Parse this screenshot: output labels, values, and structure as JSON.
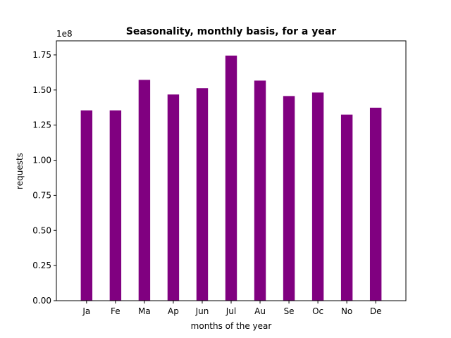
{
  "chart_data": {
    "type": "bar",
    "title": "Seasonality, monthly basis, for a year",
    "xlabel": "months of the year",
    "ylabel": "requests",
    "y_offset_label": "1e8",
    "y_scale": 100000000,
    "categories": [
      "Ja",
      "Fe",
      "Ma",
      "Ap",
      "Jun",
      "Jul",
      "Au",
      "Se",
      "Oc",
      "No",
      "De"
    ],
    "values": [
      135500000,
      135500000,
      157200000,
      146800000,
      151300000,
      174500000,
      156700000,
      145700000,
      148200000,
      132500000,
      137400000
    ],
    "ylim": [
      0,
      185000000
    ],
    "yticks": [
      0,
      25000000,
      50000000,
      75000000,
      100000000,
      125000000,
      150000000,
      175000000
    ],
    "ytick_labels": [
      "0.00",
      "0.25",
      "0.50",
      "0.75",
      "1.00",
      "1.25",
      "1.50",
      "1.75"
    ],
    "bar_color": "#800080",
    "grid": false
  }
}
